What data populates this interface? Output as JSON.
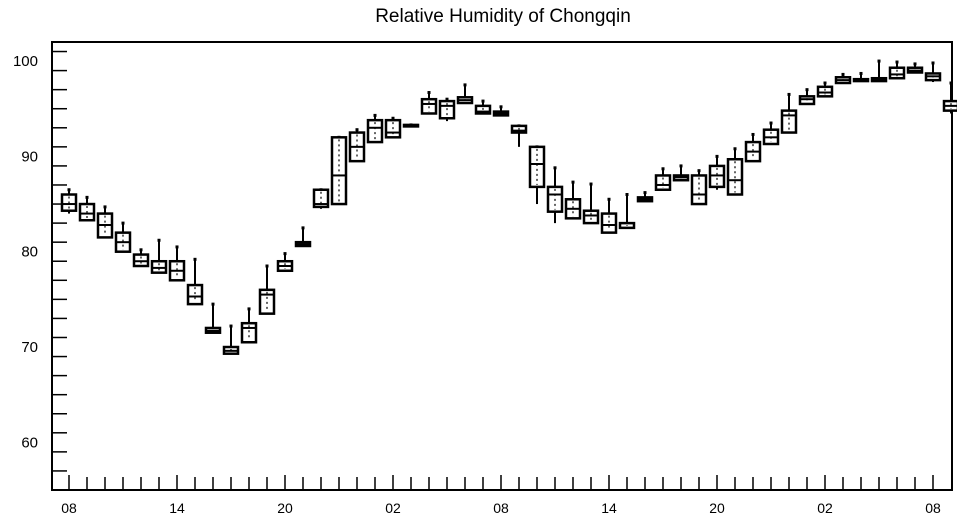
{
  "chart_data": {
    "type": "box",
    "title": "Relative Humidity of Chongqin",
    "xlabel": "",
    "ylabel": "",
    "ylim": [
      55,
      102
    ],
    "y_ticks": [
      60,
      70,
      80,
      90,
      100
    ],
    "x_tick_labels": [
      "08",
      "14",
      "20",
      "02",
      "08",
      "14",
      "20",
      "02",
      "08"
    ],
    "x_tick_hours": [
      0,
      6,
      12,
      18,
      24,
      30,
      36,
      42,
      48
    ],
    "hours_range": [
      0,
      48
    ],
    "boxes": [
      {
        "hour": 0,
        "min": 84.0,
        "q1": 84.3,
        "median": 85.0,
        "q3": 86.0,
        "max": 86.5
      },
      {
        "hour": 1,
        "min": 83.2,
        "q1": 83.3,
        "median": 84.0,
        "q3": 85.0,
        "max": 85.7
      },
      {
        "hour": 2,
        "min": 81.5,
        "q1": 81.5,
        "median": 82.8,
        "q3": 84.0,
        "max": 84.7
      },
      {
        "hour": 3,
        "min": 80.0,
        "q1": 80.0,
        "median": 81.0,
        "q3": 82.0,
        "max": 83.0
      },
      {
        "hour": 4,
        "min": 78.5,
        "q1": 78.5,
        "median": 79.0,
        "q3": 79.7,
        "max": 80.2
      },
      {
        "hour": 5,
        "min": 77.8,
        "q1": 77.8,
        "median": 78.3,
        "q3": 79.0,
        "max": 81.2
      },
      {
        "hour": 6,
        "min": 77.0,
        "q1": 77.0,
        "median": 78.0,
        "q3": 79.0,
        "max": 80.5
      },
      {
        "hour": 7,
        "min": 74.5,
        "q1": 74.5,
        "median": 75.3,
        "q3": 76.5,
        "max": 79.2
      },
      {
        "hour": 8,
        "min": 71.5,
        "q1": 71.5,
        "median": 71.7,
        "q3": 72.0,
        "max": 74.5
      },
      {
        "hour": 9,
        "min": 69.3,
        "q1": 69.3,
        "median": 69.6,
        "q3": 70.0,
        "max": 72.2
      },
      {
        "hour": 10,
        "min": 70.5,
        "q1": 70.5,
        "median": 72.0,
        "q3": 72.5,
        "max": 74.0
      },
      {
        "hour": 11,
        "min": 73.5,
        "q1": 73.5,
        "median": 75.5,
        "q3": 76.0,
        "max": 78.5
      },
      {
        "hour": 12,
        "min": 78.0,
        "q1": 78.0,
        "median": 78.5,
        "q3": 79.0,
        "max": 79.8
      },
      {
        "hour": 13,
        "min": 80.6,
        "q1": 80.6,
        "median": 80.8,
        "q3": 81.0,
        "max": 82.5
      },
      {
        "hour": 14,
        "min": 84.5,
        "q1": 84.7,
        "median": 85.0,
        "q3": 86.5,
        "max": 86.5
      },
      {
        "hour": 15,
        "min": 85.0,
        "q1": 85.0,
        "median": 88.0,
        "q3": 92.0,
        "max": 92.0
      },
      {
        "hour": 16,
        "min": 89.5,
        "q1": 89.5,
        "median": 91.0,
        "q3": 92.5,
        "max": 92.8
      },
      {
        "hour": 17,
        "min": 91.5,
        "q1": 91.5,
        "median": 93.0,
        "q3": 93.8,
        "max": 94.3
      },
      {
        "hour": 18,
        "min": 92.0,
        "q1": 92.0,
        "median": 92.5,
        "q3": 93.8,
        "max": 94.0
      },
      {
        "hour": 19,
        "min": 93.3,
        "q1": 93.3,
        "median": 93.3,
        "q3": 93.3,
        "max": 93.3
      },
      {
        "hour": 20,
        "min": 94.5,
        "q1": 94.5,
        "median": 95.5,
        "q3": 96.0,
        "max": 96.7
      },
      {
        "hour": 21,
        "min": 93.7,
        "q1": 94.0,
        "median": 95.3,
        "q3": 95.8,
        "max": 96.0
      },
      {
        "hour": 22,
        "min": 95.6,
        "q1": 95.6,
        "median": 95.9,
        "q3": 96.2,
        "max": 97.5
      },
      {
        "hour": 23,
        "min": 94.5,
        "q1": 94.5,
        "median": 94.7,
        "q3": 95.3,
        "max": 95.8
      },
      {
        "hour": 24,
        "min": 94.3,
        "q1": 94.3,
        "median": 94.5,
        "q3": 94.7,
        "max": 95.2
      },
      {
        "hour": 25,
        "min": 91.0,
        "q1": 92.5,
        "median": 92.7,
        "q3": 93.2,
        "max": 93.2
      },
      {
        "hour": 26,
        "min": 85.0,
        "q1": 86.8,
        "median": 89.2,
        "q3": 91.0,
        "max": 91.0
      },
      {
        "hour": 27,
        "min": 83.0,
        "q1": 84.2,
        "median": 86.0,
        "q3": 86.8,
        "max": 88.8
      },
      {
        "hour": 28,
        "min": 83.5,
        "q1": 83.5,
        "median": 84.5,
        "q3": 85.5,
        "max": 87.3
      },
      {
        "hour": 29,
        "min": 83.0,
        "q1": 83.0,
        "median": 83.8,
        "q3": 84.3,
        "max": 87.1
      },
      {
        "hour": 30,
        "min": 82.0,
        "q1": 82.0,
        "median": 82.8,
        "q3": 84.0,
        "max": 85.5
      },
      {
        "hour": 31,
        "min": 82.5,
        "q1": 82.5,
        "median": 83.0,
        "q3": 83.0,
        "max": 86.0
      },
      {
        "hour": 32,
        "min": 85.3,
        "q1": 85.3,
        "median": 85.5,
        "q3": 85.7,
        "max": 86.2
      },
      {
        "hour": 33,
        "min": 86.5,
        "q1": 86.5,
        "median": 87.0,
        "q3": 88.0,
        "max": 88.7
      },
      {
        "hour": 34,
        "min": 87.5,
        "q1": 87.5,
        "median": 87.8,
        "q3": 88.0,
        "max": 89.0
      },
      {
        "hour": 35,
        "min": 85.0,
        "q1": 85.0,
        "median": 86.0,
        "q3": 88.0,
        "max": 88.5
      },
      {
        "hour": 36,
        "min": 86.5,
        "q1": 86.8,
        "median": 88.0,
        "q3": 89.0,
        "max": 90.0
      },
      {
        "hour": 37,
        "min": 86.0,
        "q1": 86.0,
        "median": 87.5,
        "q3": 89.7,
        "max": 90.8
      },
      {
        "hour": 38,
        "min": 89.5,
        "q1": 89.5,
        "median": 90.5,
        "q3": 91.5,
        "max": 92.3
      },
      {
        "hour": 39,
        "min": 91.3,
        "q1": 91.3,
        "median": 92.0,
        "q3": 92.8,
        "max": 93.5
      },
      {
        "hour": 40,
        "min": 92.5,
        "q1": 92.5,
        "median": 94.3,
        "q3": 94.8,
        "max": 96.5
      },
      {
        "hour": 41,
        "min": 95.5,
        "q1": 95.5,
        "median": 96.0,
        "q3": 96.3,
        "max": 97.0
      },
      {
        "hour": 42,
        "min": 96.3,
        "q1": 96.3,
        "median": 96.7,
        "q3": 97.3,
        "max": 97.7
      },
      {
        "hour": 43,
        "min": 97.7,
        "q1": 97.7,
        "median": 98.0,
        "q3": 98.3,
        "max": 98.6
      },
      {
        "hour": 44,
        "min": 97.9,
        "q1": 97.9,
        "median": 98.0,
        "q3": 98.1,
        "max": 98.7
      },
      {
        "hour": 45,
        "min": 97.9,
        "q1": 97.9,
        "median": 98.0,
        "q3": 98.2,
        "max": 100.0
      },
      {
        "hour": 46,
        "min": 98.2,
        "q1": 98.2,
        "median": 98.6,
        "q3": 99.3,
        "max": 99.9
      },
      {
        "hour": 47,
        "min": 98.8,
        "q1": 98.8,
        "median": 99.0,
        "q3": 99.3,
        "max": 99.7
      },
      {
        "hour": 48,
        "min": 97.8,
        "q1": 98.0,
        "median": 98.4,
        "q3": 98.7,
        "max": 99.8
      },
      {
        "hour": 49,
        "min": 94.5,
        "q1": 94.8,
        "median": 95.3,
        "q3": 95.8,
        "max": 97.7
      }
    ],
    "grid": false,
    "legend": "none",
    "colors": {
      "stroke": "#000000",
      "background": "#ffffff"
    }
  }
}
